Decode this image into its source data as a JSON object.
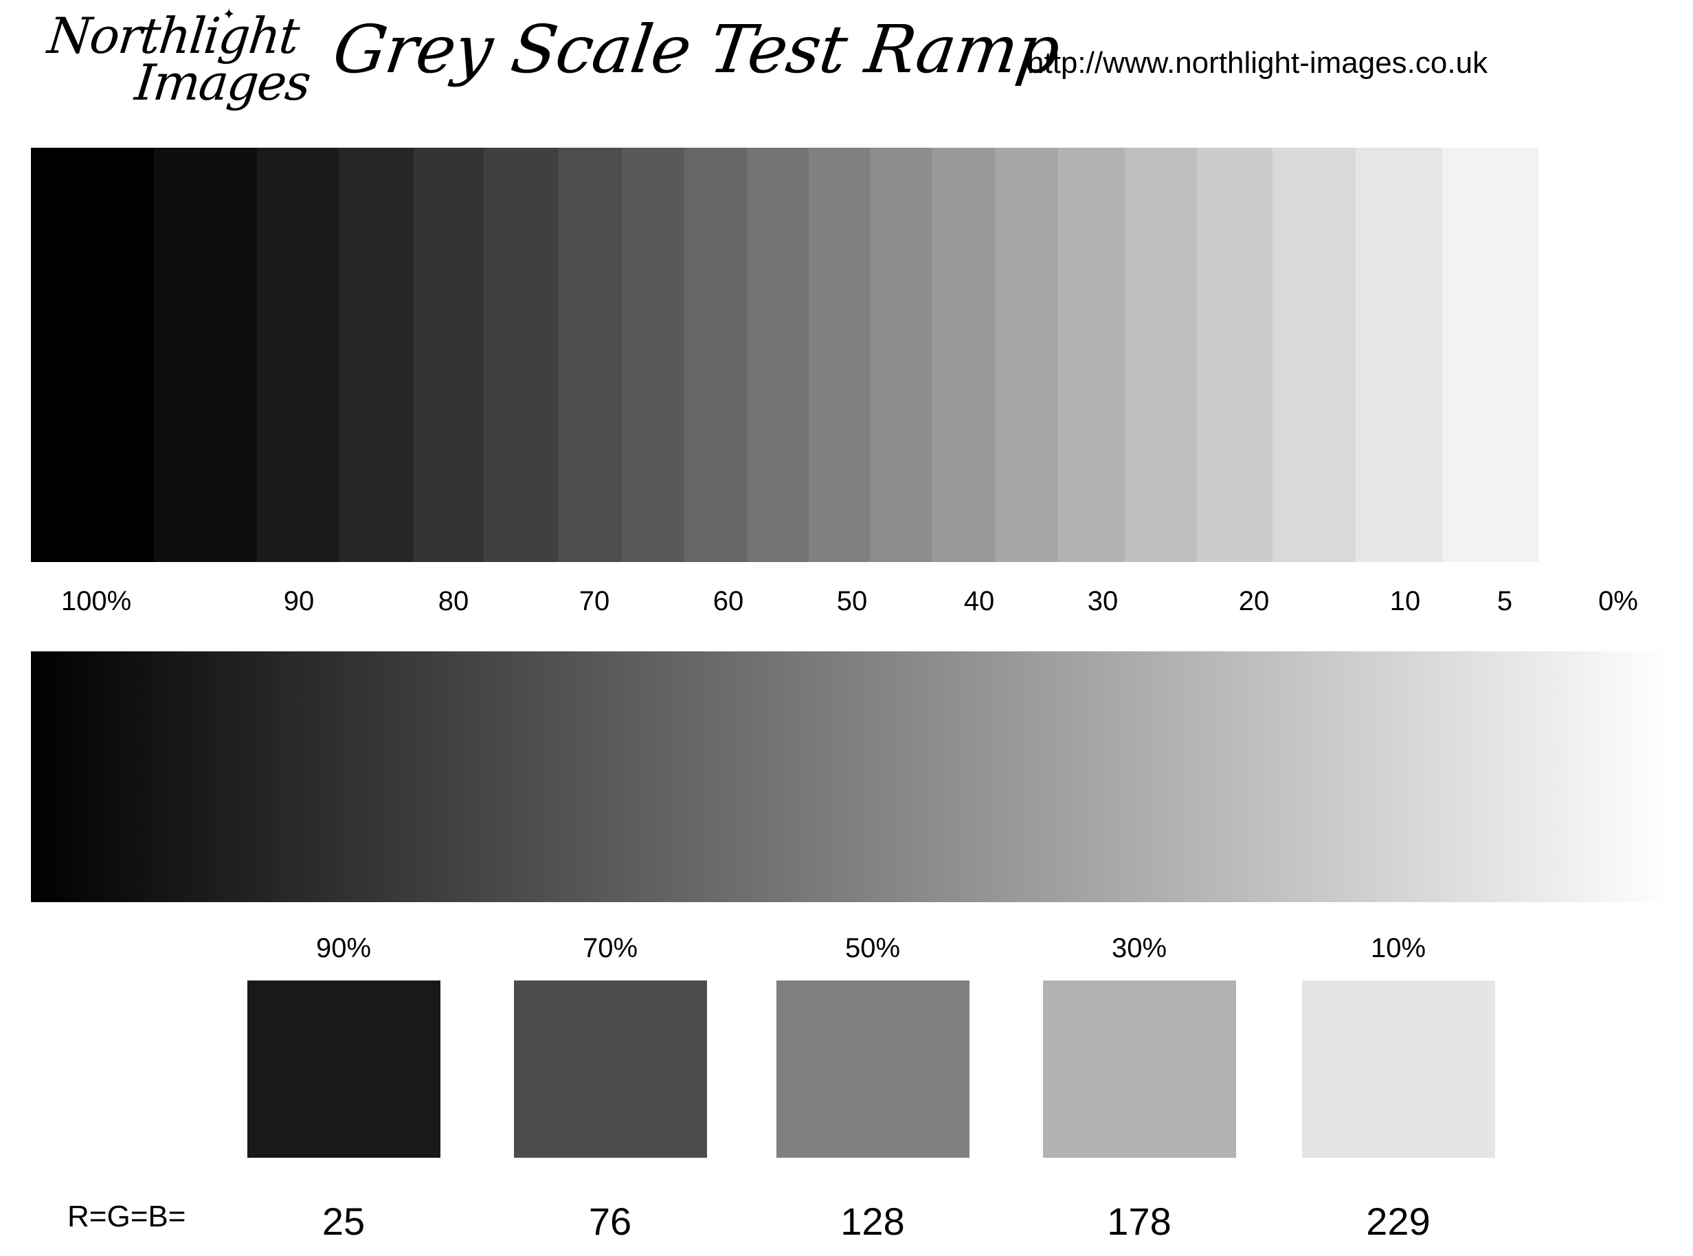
{
  "header": {
    "logo_line1": "Northlight",
    "logo_line2": "Images",
    "title": "Grey Scale Test Ramp",
    "url": "http://www.northlight-images.co.uk"
  },
  "step_ramp": {
    "steps": [
      {
        "color": "#000000"
      },
      {
        "color": "#0d0d0d"
      },
      {
        "color": "#1a1a1a"
      },
      {
        "color": "#262626"
      },
      {
        "color": "#333333"
      },
      {
        "color": "#404040"
      },
      {
        "color": "#4d4d4d"
      },
      {
        "color": "#595959"
      },
      {
        "color": "#666666"
      },
      {
        "color": "#737373"
      },
      {
        "color": "#808080"
      },
      {
        "color": "#8c8c8c"
      },
      {
        "color": "#999999"
      },
      {
        "color": "#a6a6a6"
      },
      {
        "color": "#b3b3b3"
      },
      {
        "color": "#bfbfbf"
      },
      {
        "color": "#cccccc"
      },
      {
        "color": "#d9d9d9"
      },
      {
        "color": "#e6e6e6"
      },
      {
        "color": "#f2f2f2"
      }
    ],
    "labels": [
      "100%",
      "90",
      "80",
      "70",
      "60",
      "50",
      "40",
      "30",
      "20",
      "10",
      "5",
      "0%"
    ]
  },
  "smooth_ramp": {
    "from_color": "#000000",
    "to_color": "#ffffff"
  },
  "patches": {
    "rgb_label": "R=G=B=",
    "items": [
      {
        "percent": "90%",
        "value": "25",
        "color": "#191919"
      },
      {
        "percent": "70%",
        "value": "76",
        "color": "#4c4c4c"
      },
      {
        "percent": "50%",
        "value": "128",
        "color": "#808080"
      },
      {
        "percent": "30%",
        "value": "178",
        "color": "#b2b2b2"
      },
      {
        "percent": "10%",
        "value": "229",
        "color": "#e5e5e5"
      }
    ]
  }
}
